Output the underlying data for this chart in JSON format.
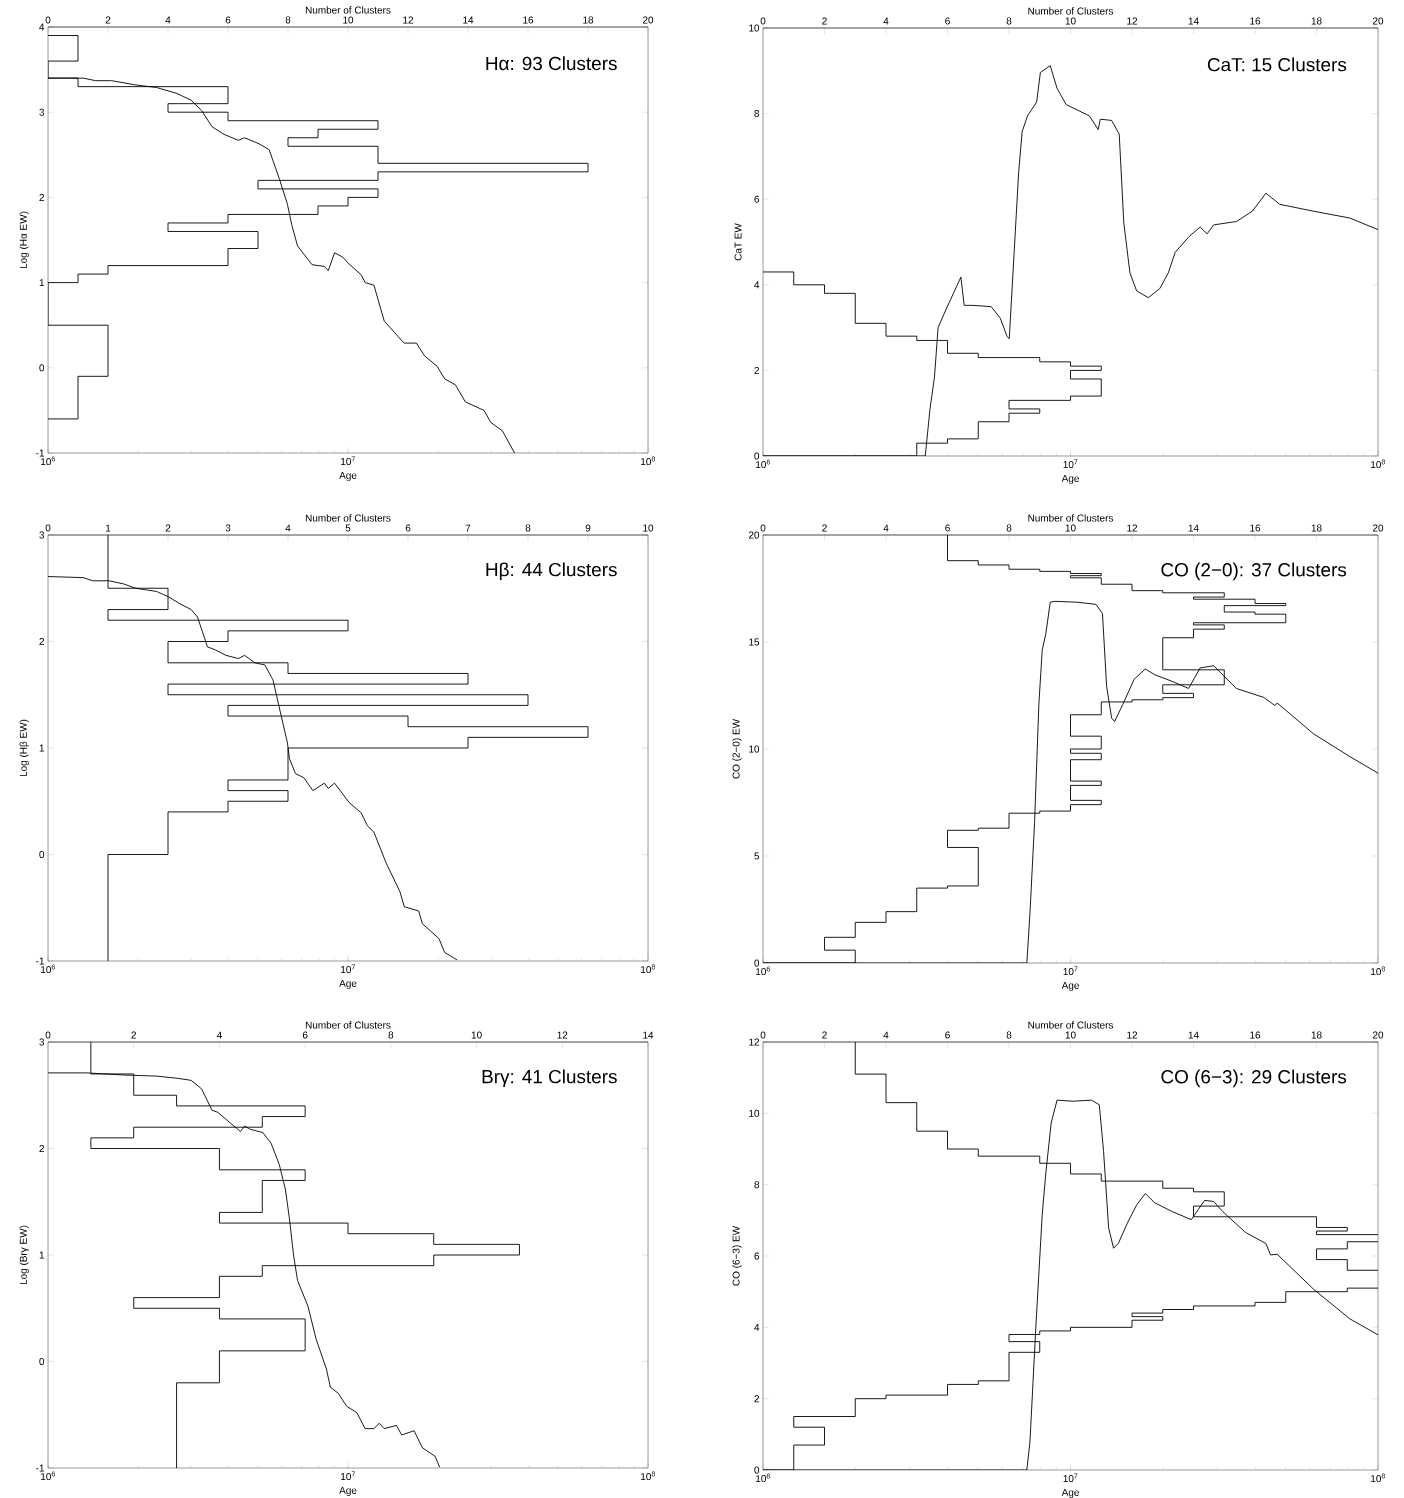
{
  "chart_data": [
    {
      "type": "line",
      "title": "Hα: 93 Clusters",
      "xlabel": "Age",
      "ylabel": "Log (Hα EW)",
      "x2label": "Number of Clusters",
      "log": "x",
      "xlim": [
        1000000.0,
        100000000.0
      ],
      "xticks": [
        {
          "value": 1000000.0,
          "label": "10$^{6}$"
        },
        {
          "value": 10000000.0,
          "label": "10$^{7}$"
        },
        {
          "value": 100000000.0,
          "label": "10$^{8}$"
        }
      ],
      "ylim": [
        -1,
        4
      ],
      "yticks": [
        -1,
        0,
        1,
        2,
        3,
        4
      ],
      "x2lim": [
        0,
        20
      ],
      "x2ticks": [
        0,
        2,
        4,
        6,
        8,
        10,
        12,
        14,
        16,
        18,
        20
      ],
      "series": [
        {
          "type": "line",
          "color": "#000000",
          "x": [
            1000000.0,
            1310000.0,
            1440000.0,
            1630000.0,
            1960000.0,
            2300000.0,
            2690000.0,
            3000000.0,
            3250000.0,
            3520000.0,
            3860000.0,
            4310000.0,
            4520000.0,
            5050000.0,
            5460000.0,
            5900000.0,
            6280000.0,
            6490000.0,
            6790000.0,
            7590000.0,
            8340000.0,
            8590000.0,
            9020000.0,
            9590000.0,
            10070000.0,
            11070000.0,
            11400000.0,
            12200000.0,
            13200000.0,
            15100000.0,
            15400000.0,
            16900000.0,
            18000000.0,
            19800000.0,
            21000000.0,
            22800000.0,
            24600000.0,
            28400000.0,
            29900000.0,
            32700000.0,
            35900000.0
          ],
          "values": [
            3.4,
            3.4,
            3.37,
            3.37,
            3.32,
            3.29,
            3.22,
            3.14,
            3.02,
            2.83,
            2.74,
            2.67,
            2.7,
            2.63,
            2.56,
            2.22,
            1.92,
            1.68,
            1.43,
            1.21,
            1.19,
            1.14,
            1.35,
            1.3,
            1.22,
            1.09,
            1.0,
            0.97,
            0.55,
            0.32,
            0.29,
            0.29,
            0.14,
            0.02,
            -0.13,
            -0.2,
            -0.4,
            -0.5,
            -0.64,
            -0.74,
            -1.0
          ]
        },
        {
          "type": "line",
          "axis": "x2",
          "color": "#000000",
          "x": [
            0,
            1,
            1,
            0,
            0,
            1,
            1,
            6,
            6,
            4,
            4,
            6,
            6,
            11,
            11,
            9,
            9,
            8,
            8,
            11,
            11,
            18,
            18,
            11,
            11,
            7,
            7,
            11,
            11,
            10,
            10,
            9,
            9,
            6,
            6,
            4,
            4,
            7,
            7,
            6,
            6,
            2,
            2,
            1,
            1,
            0,
            0,
            2,
            2,
            1,
            1,
            0
          ],
          "values": [
            3.9,
            3.9,
            3.6,
            3.6,
            3.4,
            3.4,
            3.3,
            3.3,
            3.1,
            3.1,
            3.0,
            3.0,
            2.9,
            2.9,
            2.8,
            2.8,
            2.7,
            2.7,
            2.6,
            2.6,
            2.4,
            2.4,
            2.3,
            2.3,
            2.2,
            2.2,
            2.1,
            2.1,
            2.0,
            2.0,
            1.9,
            1.9,
            1.8,
            1.8,
            1.7,
            1.7,
            1.6,
            1.6,
            1.4,
            1.4,
            1.2,
            1.2,
            1.1,
            1.1,
            1.0,
            1.0,
            0.5,
            0.5,
            -0.1,
            -0.1,
            -0.6,
            -0.6
          ]
        }
      ]
    },
    {
      "type": "line",
      "title": "CaT: 15 Clusters",
      "xlabel": "Age",
      "ylabel": "CaT EW",
      "x2label": "Number of Clusters",
      "log": "x",
      "xlim": [
        1000000.0,
        100000000.0
      ],
      "xticks": [
        {
          "value": 1000000.0,
          "label": "10$^{6}$"
        },
        {
          "value": 10000000.0,
          "label": "10$^{7}$"
        },
        {
          "value": 100000000.0,
          "label": "10$^{8}$"
        }
      ],
      "ylim": [
        0,
        10
      ],
      "yticks": [
        0,
        2,
        4,
        6,
        8,
        10
      ],
      "x2lim": [
        0,
        20
      ],
      "x2ticks": [
        0,
        2,
        4,
        6,
        8,
        10,
        12,
        14,
        16,
        18,
        20
      ],
      "series": [
        {
          "type": "line",
          "color": "#000000",
          "x": [
            1000000.0,
            3370000.0,
            3490000.0,
            3610000.0,
            3710000.0,
            3940000.0,
            4070000.0,
            4400000.0,
            4510000.0,
            4820000.0,
            5520000.0,
            5910000.0,
            6220000.0,
            6320000.0,
            6550000.0,
            6780000.0,
            6960000.0,
            7250000.0,
            7760000.0,
            7980000.0,
            8590000.0,
            9040000.0,
            9680000.0,
            11500000.0,
            12300000.0,
            12500000.0,
            13600000.0,
            14400000.0,
            14900000.0,
            15600000.0,
            16400000.0,
            17900000.0,
            19500000.0,
            20800000.0,
            21900000.0,
            24300000.0,
            26400000.0,
            27800000.0,
            29200000.0,
            34700000.0,
            39000000.0,
            43200000.0,
            47900000.0,
            61700000.0,
            80900000.0,
            100000000.0
          ],
          "values": [
            0,
            0,
            1.09,
            1.84,
            3.0,
            3.43,
            3.65,
            4.18,
            3.52,
            3.52,
            3.49,
            3.22,
            2.79,
            2.74,
            4.71,
            6.62,
            7.58,
            7.95,
            8.27,
            8.96,
            9.12,
            8.59,
            8.21,
            7.95,
            7.63,
            7.87,
            7.84,
            7.52,
            5.45,
            4.28,
            3.86,
            3.7,
            3.91,
            4.28,
            4.76,
            5.13,
            5.35,
            5.19,
            5.4,
            5.48,
            5.72,
            6.14,
            5.88,
            5.72,
            5.56,
            5.29
          ]
        },
        {
          "type": "line",
          "axis": "x2",
          "color": "#000000",
          "x": [
            0,
            1,
            1,
            2,
            2,
            3,
            3,
            4,
            4,
            5,
            5,
            6,
            6,
            7,
            7,
            9,
            9,
            10,
            10,
            11,
            11,
            10,
            10,
            11,
            11,
            10,
            10,
            8,
            8,
            9,
            9,
            8,
            8,
            7,
            7,
            6,
            6,
            5,
            5,
            0
          ],
          "values": [
            4.3,
            4.3,
            4.0,
            4.0,
            3.8,
            3.8,
            3.1,
            3.1,
            2.8,
            2.8,
            2.7,
            2.7,
            2.4,
            2.4,
            2.3,
            2.3,
            2.2,
            2.2,
            2.1,
            2.1,
            2.0,
            2.0,
            1.8,
            1.8,
            1.4,
            1.4,
            1.3,
            1.3,
            1.1,
            1.1,
            1.0,
            1.0,
            0.8,
            0.8,
            0.4,
            0.4,
            0.3,
            0.3,
            0,
            0
          ]
        }
      ]
    },
    {
      "type": "line",
      "title": "Hβ: 44 Clusters",
      "xlabel": "Age",
      "ylabel": "Log (Hβ EW)",
      "x2label": "Number of Clusters",
      "log": "x",
      "xlim": [
        1000000.0,
        100000000.0
      ],
      "xticks": [
        {
          "value": 1000000.0,
          "label": "10$^{6}$"
        },
        {
          "value": 10000000.0,
          "label": "10$^{7}$"
        },
        {
          "value": 100000000.0,
          "label": "10$^{8}$"
        }
      ],
      "ylim": [
        -1,
        3
      ],
      "yticks": [
        -1,
        0,
        1,
        2,
        3
      ],
      "x2lim": [
        0,
        10
      ],
      "x2ticks": [
        0,
        1,
        2,
        3,
        4,
        5,
        6,
        7,
        8,
        9,
        10
      ],
      "series": [
        {
          "type": "line",
          "color": "#000000",
          "x": [
            1000000.0,
            1310000.0,
            1410000.0,
            1600000.0,
            1790000.0,
            1960000.0,
            2300000.0,
            2520000.0,
            2770000.0,
            3000000.0,
            3150000.0,
            3400000.0,
            3620000.0,
            3920000.0,
            4310000.0,
            4520000.0,
            4890000.0,
            5280000.0,
            5620000.0,
            6000000.0,
            6280000.0,
            6380000.0,
            6680000.0,
            7130000.0,
            7640000.0,
            8340000.0,
            8590000.0,
            9020000.0,
            10070000.0,
            11070000.0,
            11600000.0,
            12200000.0,
            13400000.0,
            14900000.0,
            15400000.0,
            17200000.0,
            17700000.0,
            20100000.0,
            21000000.0,
            23100000.0
          ],
          "values": [
            2.61,
            2.6,
            2.57,
            2.57,
            2.54,
            2.5,
            2.47,
            2.42,
            2.35,
            2.3,
            2.23,
            1.95,
            1.92,
            1.87,
            1.84,
            1.87,
            1.8,
            1.78,
            1.64,
            1.29,
            1.05,
            0.9,
            0.76,
            0.72,
            0.6,
            0.67,
            0.62,
            0.67,
            0.49,
            0.39,
            0.27,
            0.21,
            -0.08,
            -0.35,
            -0.49,
            -0.53,
            -0.65,
            -0.79,
            -0.92,
            -0.99
          ]
        },
        {
          "type": "line",
          "axis": "x2",
          "color": "#000000",
          "x": [
            1,
            1,
            2,
            2,
            1,
            1,
            5,
            5,
            3,
            3,
            2,
            2,
            4,
            4,
            7,
            7,
            2,
            2,
            8,
            8,
            3,
            3,
            6,
            6,
            9,
            9,
            7,
            7,
            4,
            4,
            3,
            3,
            4,
            4,
            3,
            3,
            2,
            2,
            1,
            1
          ],
          "values": [
            3,
            2.5,
            2.5,
            2.3,
            2.3,
            2.2,
            2.2,
            2.1,
            2.1,
            2.0,
            2.0,
            1.8,
            1.8,
            1.7,
            1.7,
            1.6,
            1.6,
            1.5,
            1.5,
            1.4,
            1.4,
            1.3,
            1.3,
            1.2,
            1.2,
            1.1,
            1.1,
            1.0,
            1.0,
            0.7,
            0.7,
            0.6,
            0.6,
            0.5,
            0.5,
            0.4,
            0.4,
            0,
            0,
            -1
          ]
        }
      ]
    },
    {
      "type": "line",
      "title": "CO (2−0): 37 Clusters",
      "xlabel": "Age",
      "ylabel": "CO (2−0) EW",
      "x2label": "Number of Clusters",
      "log": "x",
      "xlim": [
        1000000.0,
        100000000.0
      ],
      "xticks": [
        {
          "value": 1000000.0,
          "label": "10$^{6}$"
        },
        {
          "value": 10000000.0,
          "label": "10$^{7}$"
        },
        {
          "value": 100000000.0,
          "label": "10$^{8}$"
        }
      ],
      "ylim": [
        0,
        20
      ],
      "yticks": [
        0,
        5,
        10,
        15,
        20
      ],
      "x2lim": [
        0,
        20
      ],
      "x2ticks": [
        0,
        2,
        4,
        6,
        8,
        10,
        12,
        14,
        16,
        18,
        20
      ],
      "series": [
        {
          "type": "line",
          "color": "#000000",
          "x": [
            1000000.0,
            7210000.0,
            7380000.0,
            7640000.0,
            7890000.0,
            8090000.0,
            8310000.0,
            8590000.0,
            8890000.0,
            10500000.0,
            12100000.0,
            12700000.0,
            13100000.0,
            13600000.0,
            13900000.0,
            14800000.0,
            16100000.0,
            17500000.0,
            18800000.0,
            21500000.0,
            24200000.0,
            26400000.0,
            29200000.0,
            34600000.0,
            42500000.0,
            46200000.0,
            47000000.0,
            61700000.0,
            80900000.0,
            100000000.0
          ],
          "values": [
            0,
            0,
            2.33,
            6.57,
            12.09,
            14.63,
            15.38,
            16.86,
            16.9,
            16.86,
            16.76,
            16.33,
            12.94,
            11.45,
            11.28,
            12.09,
            13.26,
            13.74,
            13.47,
            13.15,
            12.83,
            13.79,
            13.89,
            12.83,
            12.41,
            12.03,
            12.15,
            10.71,
            9.65,
            8.87
          ]
        },
        {
          "type": "line",
          "axis": "x2",
          "color": "#000000",
          "x": [
            6,
            6,
            7,
            7,
            8,
            8,
            9,
            9,
            10,
            10,
            11,
            11,
            10,
            10,
            11,
            11,
            12,
            12,
            13,
            13,
            15,
            15,
            14,
            14,
            16,
            16,
            17,
            17,
            15,
            15,
            16,
            16,
            17,
            17,
            14,
            14,
            15,
            15,
            14,
            14,
            13,
            13,
            15,
            15,
            13,
            13,
            14,
            14,
            13,
            13,
            12,
            12,
            11,
            11,
            10,
            10,
            11,
            11,
            10,
            10,
            11,
            11,
            10,
            10,
            11,
            11,
            10,
            10,
            11,
            11,
            10,
            10,
            9,
            9,
            8,
            8,
            7,
            7,
            6,
            6,
            7,
            7,
            6,
            6,
            5,
            5,
            4,
            4,
            3,
            3,
            2,
            2,
            3,
            3,
            0
          ],
          "values": [
            20,
            18.8,
            18.8,
            18.6,
            18.6,
            18.4,
            18.4,
            18.3,
            18.3,
            18.2,
            18.2,
            18.1,
            18.1,
            18.0,
            18.0,
            17.7,
            17.7,
            17.4,
            17.4,
            17.3,
            17.3,
            17.1,
            17.1,
            17.0,
            17.0,
            16.8,
            16.8,
            16.7,
            16.7,
            16.4,
            16.4,
            16.3,
            16.3,
            15.9,
            15.9,
            15.8,
            15.8,
            15.6,
            15.6,
            15.2,
            15.2,
            13.7,
            13.7,
            13.0,
            13.0,
            12.6,
            12.6,
            12.4,
            12.4,
            12.3,
            12.3,
            12.2,
            12.2,
            11.6,
            11.6,
            10.6,
            10.6,
            10.0,
            10.0,
            9.8,
            9.8,
            9.5,
            9.5,
            8.5,
            8.5,
            8.3,
            8.3,
            7.6,
            7.6,
            7.4,
            7.4,
            7.1,
            7.1,
            7.0,
            7.0,
            6.3,
            6.3,
            6.2,
            6.2,
            5.4,
            5.4,
            3.6,
            3.6,
            3.5,
            3.5,
            2.4,
            2.4,
            1.9,
            1.9,
            1.2,
            1.2,
            0.6,
            0.6,
            0,
            0
          ]
        }
      ]
    },
    {
      "type": "line",
      "title": "Brγ: 41 Clusters",
      "xlabel": "Age",
      "ylabel": "Log (Brγ EW)",
      "x2label": "Number of Clusters",
      "log": "x",
      "xlim": [
        1000000.0,
        100000000.0
      ],
      "xticks": [
        {
          "value": 1000000.0,
          "label": "10$^{6}$"
        },
        {
          "value": 10000000.0,
          "label": "10$^{7}$"
        },
        {
          "value": 100000000.0,
          "label": "10$^{8}$"
        }
      ],
      "ylim": [
        -1,
        3
      ],
      "yticks": [
        -1,
        0,
        1,
        2,
        3
      ],
      "x2lim": [
        0,
        14
      ],
      "x2ticks": [
        0,
        2,
        4,
        6,
        8,
        10,
        12,
        14
      ],
      "series": [
        {
          "type": "line",
          "color": "#000000",
          "x": [
            1000000.0,
            1350000.0,
            1790000.0,
            2300000.0,
            2690000.0,
            3000000.0,
            3250000.0,
            3520000.0,
            3680000.0,
            4050000.0,
            4380000.0,
            4520000.0,
            4730000.0,
            5200000.0,
            5540000.0,
            5900000.0,
            6180000.0,
            6380000.0,
            6590000.0,
            6790000.0,
            7350000.0,
            7830000.0,
            8470000.0,
            8730000.0,
            9290000.0,
            9890000.0,
            10700000.0,
            11400000.0,
            12200000.0,
            12700000.0,
            13200000.0,
            14500000.0,
            15100000.0,
            16600000.0,
            17700000.0,
            19500000.0,
            20200000.0
          ],
          "values": [
            2.71,
            2.71,
            2.69,
            2.68,
            2.66,
            2.64,
            2.56,
            2.36,
            2.34,
            2.24,
            2.16,
            2.21,
            2.18,
            2.15,
            2.05,
            1.85,
            1.62,
            1.34,
            0.99,
            0.76,
            0.52,
            0.21,
            -0.07,
            -0.24,
            -0.3,
            -0.42,
            -0.48,
            -0.63,
            -0.63,
            -0.58,
            -0.63,
            -0.6,
            -0.69,
            -0.65,
            -0.81,
            -0.89,
            -0.99
          ]
        },
        {
          "type": "line",
          "axis": "x2",
          "color": "#000000",
          "x": [
            1,
            1,
            2,
            2,
            3,
            3,
            6,
            6,
            5,
            5,
            2,
            2,
            1,
            1,
            4,
            4,
            6,
            6,
            5,
            5,
            4,
            4,
            7,
            7,
            9,
            9,
            11,
            11,
            9,
            9,
            5,
            5,
            4,
            4,
            2,
            2,
            4,
            4,
            6,
            6,
            4,
            4,
            3,
            3
          ],
          "values": [
            3,
            2.7,
            2.7,
            2.5,
            2.5,
            2.4,
            2.4,
            2.3,
            2.3,
            2.2,
            2.2,
            2.1,
            2.1,
            2.0,
            2.0,
            1.8,
            1.8,
            1.7,
            1.7,
            1.4,
            1.4,
            1.3,
            1.3,
            1.2,
            1.2,
            1.1,
            1.1,
            1.0,
            1.0,
            0.9,
            0.9,
            0.8,
            0.8,
            0.6,
            0.6,
            0.5,
            0.5,
            0.4,
            0.4,
            0.1,
            0.1,
            -0.2,
            -0.2,
            -1
          ]
        }
      ]
    },
    {
      "type": "line",
      "title": "CO (6−3): 29 Clusters",
      "xlabel": "Age",
      "ylabel": "CO (6−3) EW",
      "x2label": "Number of Clusters",
      "log": "x",
      "xlim": [
        1000000.0,
        100000000.0
      ],
      "xticks": [
        {
          "value": 1000000.0,
          "label": "10$^{6}$"
        },
        {
          "value": 10000000.0,
          "label": "10$^{7}$"
        },
        {
          "value": 100000000.0,
          "label": "10$^{8}$"
        }
      ],
      "ylim": [
        0,
        12
      ],
      "yticks": [
        0,
        2,
        4,
        6,
        8,
        10,
        12
      ],
      "x2lim": [
        0,
        20
      ],
      "x2ticks": [
        0,
        2,
        4,
        6,
        8,
        10,
        12,
        14,
        16,
        18,
        20
      ],
      "series": [
        {
          "type": "line",
          "color": "#000000",
          "x": [
            1000000.0,
            7210000.0,
            7380000.0,
            7710000.0,
            8090000.0,
            8310000.0,
            8650000.0,
            9040000.0,
            10200000.0,
            11700000.0,
            12400000.0,
            12800000.0,
            13300000.0,
            13800000.0,
            14300000.0,
            15300000.0,
            16400000.0,
            17500000.0,
            18800000.0,
            21500000.0,
            24700000.0,
            26000000.0,
            27300000.0,
            29200000.0,
            31300000.0,
            37100000.0,
            43200000.0,
            44700000.0,
            47000000.0,
            61700000.0,
            80900000.0,
            100000000.0
          ],
          "values": [
            0,
            0,
            0.79,
            3.98,
            7.17,
            8.32,
            9.73,
            10.37,
            10.34,
            10.37,
            10.24,
            8.96,
            6.79,
            6.22,
            6.35,
            6.92,
            7.43,
            7.75,
            7.49,
            7.24,
            7.02,
            7.3,
            7.56,
            7.53,
            7.24,
            6.66,
            6.35,
            6.03,
            6.05,
            5.07,
            4.24,
            3.79
          ]
        },
        {
          "type": "line",
          "axis": "x2",
          "color": "#000000",
          "x": [
            3,
            3,
            4,
            4,
            5,
            5,
            6,
            6,
            7,
            7,
            9,
            9,
            10,
            10,
            11,
            11,
            13,
            13,
            14,
            14,
            15,
            15,
            14,
            14,
            18,
            18,
            19,
            19,
            18,
            18,
            20,
            null,
            20,
            19,
            19,
            18,
            18,
            19,
            19,
            20,
            null,
            20,
            19,
            19,
            17,
            17,
            16,
            16,
            14,
            14,
            13,
            13,
            12,
            12,
            13,
            13,
            12,
            12,
            10,
            10,
            9,
            9,
            8,
            8,
            9,
            9,
            8,
            8,
            7,
            7,
            6,
            6,
            4,
            4,
            3,
            3,
            1,
            1,
            2,
            2,
            1,
            1,
            0
          ],
          "values": [
            12,
            11.1,
            11.1,
            10.3,
            10.3,
            9.5,
            9.5,
            9.0,
            9.0,
            8.8,
            8.8,
            8.6,
            8.6,
            8.3,
            8.3,
            8.1,
            8.1,
            7.9,
            7.9,
            7.8,
            7.8,
            7.4,
            7.4,
            7.1,
            7.1,
            6.8,
            6.8,
            6.7,
            6.7,
            6.6,
            6.6,
            null,
            6.4,
            6.4,
            6.2,
            6.2,
            5.9,
            5.9,
            5.6,
            5.6,
            null,
            5.1,
            5.1,
            5.0,
            5.0,
            4.7,
            4.7,
            4.6,
            4.6,
            4.5,
            4.5,
            4.4,
            4.4,
            4.3,
            4.3,
            4.2,
            4.2,
            4.0,
            4.0,
            3.9,
            3.9,
            3.8,
            3.8,
            3.6,
            3.6,
            3.3,
            3.3,
            2.5,
            2.5,
            2.4,
            2.4,
            2.1,
            2.1,
            2.0,
            2.0,
            1.5,
            1.5,
            1.2,
            1.2,
            0.7,
            0.7,
            0,
            0
          ]
        }
      ]
    }
  ]
}
